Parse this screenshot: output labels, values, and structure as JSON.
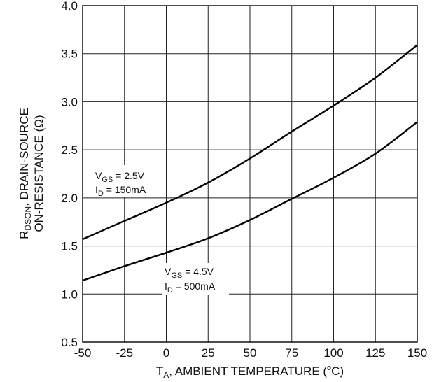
{
  "chart_data": {
    "type": "line",
    "title": "",
    "xlabel": {
      "main": "T",
      "sub": "A",
      "rest": ", AMBIENT TEMPERATURE (",
      "unit_sup": "o",
      "unit_rest": "C)"
    },
    "ylabel": {
      "line1_main": "R",
      "line1_sub": "DSON",
      "line1_rest": ", DRAIN-SOURCE",
      "line2": "ON-RESISTANCE (Ω)"
    },
    "xlim": [
      -50,
      150
    ],
    "ylim": [
      0.5,
      4.0
    ],
    "x_ticks": [
      "-50",
      "-25",
      "0",
      "25",
      "50",
      "75",
      "100",
      "125",
      "150"
    ],
    "y_ticks": [
      "0.5",
      "1.0",
      "1.5",
      "2.0",
      "2.5",
      "3.0",
      "3.5",
      "4.0"
    ],
    "grid": true,
    "x": [
      -50,
      -25,
      0,
      25,
      50,
      75,
      100,
      125,
      150
    ],
    "series": [
      {
        "values": [
          1.57,
          1.76,
          1.95,
          2.16,
          2.41,
          2.69,
          2.96,
          3.25,
          3.59
        ],
        "annotation": {
          "line1_main": "V",
          "line1_sub": "GS",
          "line1_rest": " = 2.5V",
          "line2_main": "I",
          "line2_sub": "D",
          "line2_rest": " = 150mA"
        }
      },
      {
        "values": [
          1.14,
          1.29,
          1.43,
          1.58,
          1.77,
          1.99,
          2.21,
          2.46,
          2.79
        ],
        "annotation": {
          "line1_main": "V",
          "line1_sub": "GS",
          "line1_rest": " = 4.5V",
          "line2_main": "I",
          "line2_sub": "D",
          "line2_rest": " = 500mA"
        }
      }
    ]
  }
}
